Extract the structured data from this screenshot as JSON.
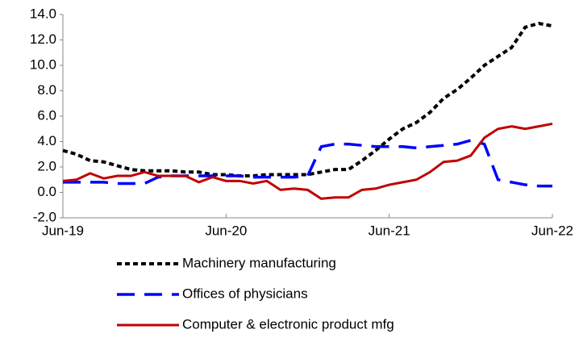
{
  "chart_data": {
    "type": "line",
    "categories": [
      "Jun-19",
      null,
      null,
      null,
      null,
      null,
      null,
      null,
      null,
      null,
      null,
      null,
      "Jun-20",
      null,
      null,
      null,
      null,
      null,
      null,
      null,
      null,
      null,
      null,
      null,
      "Jun-21",
      null,
      null,
      null,
      null,
      null,
      null,
      null,
      null,
      null,
      null,
      null,
      "Jun-22"
    ],
    "series": [
      {
        "name": "Machinery manufacturing",
        "color": "#000000",
        "values": [
          3.3,
          3.0,
          2.5,
          2.4,
          2.1,
          1.8,
          1.7,
          1.7,
          1.7,
          1.6,
          1.6,
          1.4,
          1.4,
          1.3,
          1.3,
          1.4,
          1.4,
          1.4,
          1.4,
          1.6,
          1.8,
          1.8,
          2.5,
          3.3,
          4.2,
          5.0,
          5.5,
          6.3,
          7.4,
          8.1,
          9.0,
          10.0,
          10.7,
          11.4,
          13.0,
          13.3,
          13.1
        ]
      },
      {
        "name": "Offices of physicians",
        "color": "#0000ff",
        "values": [
          0.8,
          0.8,
          0.8,
          0.8,
          0.7,
          0.7,
          0.7,
          1.2,
          1.3,
          1.3,
          1.3,
          1.3,
          1.3,
          1.3,
          1.2,
          1.2,
          1.2,
          1.2,
          1.3,
          3.6,
          3.8,
          3.8,
          3.7,
          3.6,
          3.6,
          3.6,
          3.5,
          3.6,
          3.7,
          3.8,
          4.1,
          3.8,
          1.0,
          0.8,
          0.6,
          0.5,
          0.5
        ]
      },
      {
        "name": "Computer & electronic product mfg",
        "color": "#c00000",
        "values": [
          0.9,
          1.0,
          1.5,
          1.1,
          1.3,
          1.3,
          1.6,
          1.3,
          1.3,
          1.3,
          0.8,
          1.2,
          0.9,
          0.9,
          0.7,
          0.9,
          0.2,
          0.3,
          0.2,
          -0.5,
          -0.4,
          -0.4,
          0.2,
          0.3,
          0.6,
          0.8,
          1.0,
          1.6,
          2.4,
          2.5,
          2.9,
          4.3,
          5.0,
          5.2,
          5.0,
          5.2,
          5.4
        ]
      }
    ],
    "ylim": [
      -2,
      14
    ],
    "yticks": [
      {
        "value": -2,
        "label": "-2.0"
      },
      {
        "value": 0,
        "label": "0.0"
      },
      {
        "value": 2,
        "label": "2.0"
      },
      {
        "value": 4,
        "label": "4.0"
      },
      {
        "value": 6,
        "label": "6.0"
      },
      {
        "value": 8,
        "label": "8.0"
      },
      {
        "value": 10,
        "label": "10.0"
      },
      {
        "value": 12,
        "label": "12.0"
      },
      {
        "value": 14,
        "label": "14.0"
      }
    ],
    "grid": false
  }
}
